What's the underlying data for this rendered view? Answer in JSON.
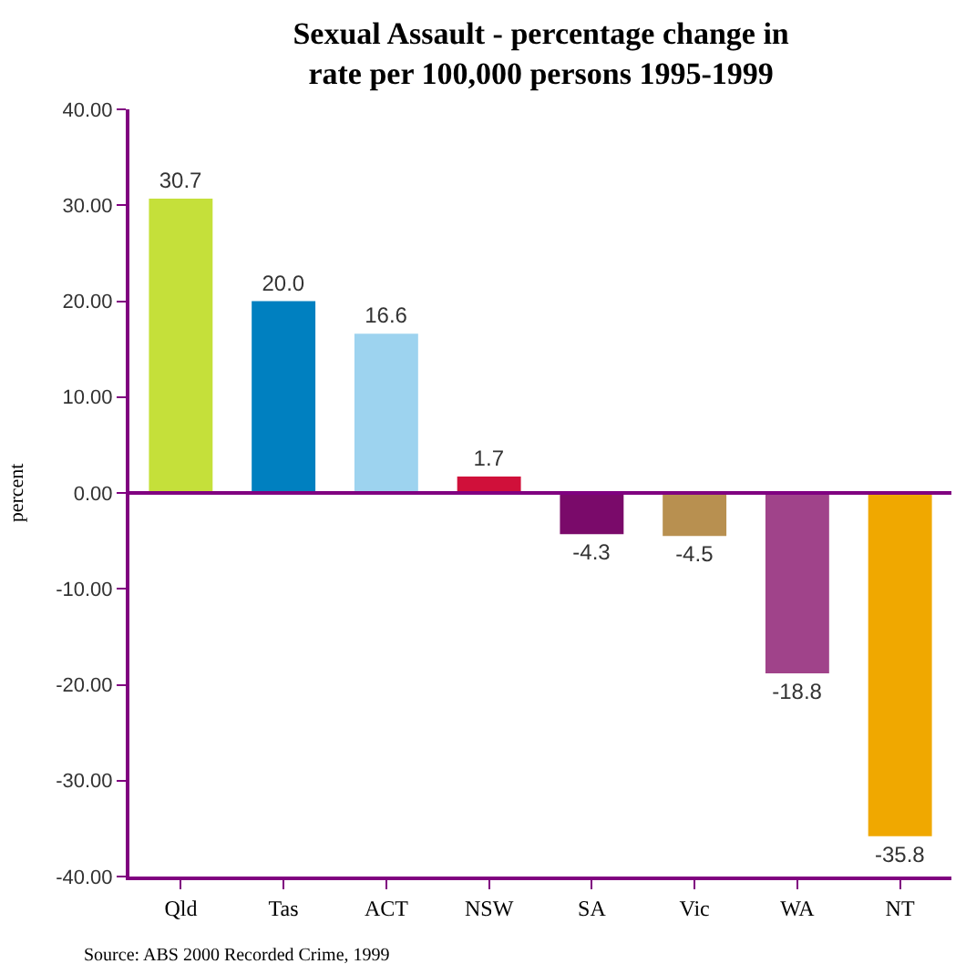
{
  "chart_data": {
    "type": "bar",
    "title": "Sexual Assault - percentage change in\nrate per 100,000 persons 1995-1999",
    "ylabel": "percent",
    "categories": [
      "Qld",
      "Tas",
      "ACT",
      "NSW",
      "SA",
      "Vic",
      "WA",
      "NT"
    ],
    "values": [
      30.7,
      20.0,
      16.6,
      1.7,
      -4.3,
      -4.5,
      -18.8,
      -35.8
    ],
    "colors": [
      "#c5e03a",
      "#0080c0",
      "#9dd3ef",
      "#d0103a",
      "#7a0a6a",
      "#b89050",
      "#a0438a",
      "#f0a800"
    ],
    "value_labels": [
      "30.7",
      "20.0",
      "16.6",
      "1.7",
      "-4.3",
      "-4.5",
      "-18.8",
      "-35.8"
    ],
    "ylim": [
      -40,
      40
    ],
    "yticks": [
      {
        "value": -40,
        "label": "-40.00"
      },
      {
        "value": -30,
        "label": "-30.00"
      },
      {
        "value": -20,
        "label": "-20.00"
      },
      {
        "value": -10,
        "label": "-10.00"
      },
      {
        "value": 0,
        "label": "0.00"
      },
      {
        "value": 10,
        "label": "10.00"
      },
      {
        "value": 20,
        "label": "20.00"
      },
      {
        "value": 30,
        "label": "30.00"
      },
      {
        "value": 40,
        "label": "40.00"
      }
    ],
    "ref_lines": [
      {
        "axis": "y",
        "value": 0,
        "label": null,
        "color": "#800080"
      }
    ],
    "annotations": [
      "Source: ABS 2000 Recorded Crime, 1999"
    ]
  }
}
